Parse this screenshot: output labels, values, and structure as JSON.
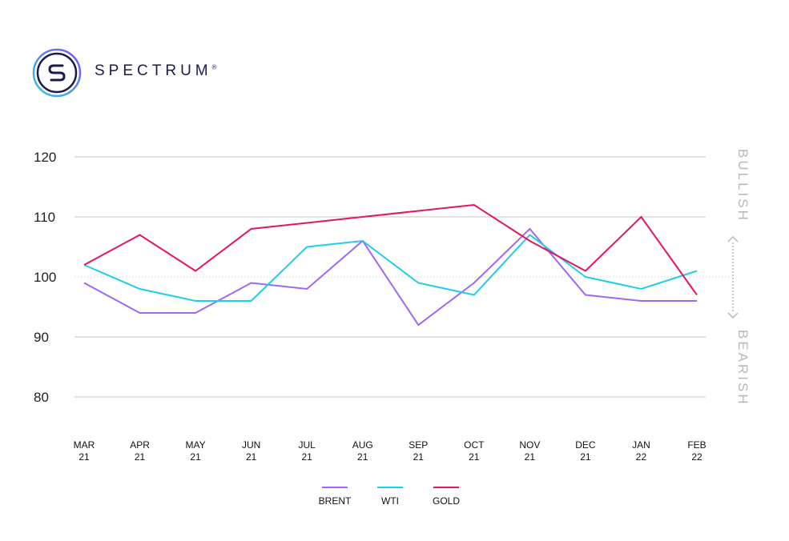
{
  "brand": {
    "name": "SPECTRUM",
    "reg_mark": "®",
    "logo_letter": "S",
    "colors": {
      "ring_start": "#2bc9f5",
      "ring_end": "#7b4ff0",
      "text": "#1a1a4e"
    }
  },
  "side_labels": {
    "top": "BULLISH",
    "bottom": "BEARISH"
  },
  "chart_data": {
    "type": "line",
    "x": [
      [
        "MAR",
        "21"
      ],
      [
        "APR",
        "21"
      ],
      [
        "MAY",
        "21"
      ],
      [
        "JUN",
        "21"
      ],
      [
        "JUL",
        "21"
      ],
      [
        "AUG",
        "21"
      ],
      [
        "SEP",
        "21"
      ],
      [
        "OCT",
        "21"
      ],
      [
        "NOV",
        "21"
      ],
      [
        "DEC",
        "21"
      ],
      [
        "JAN",
        "22"
      ],
      [
        "FEB",
        "22"
      ]
    ],
    "ylim": [
      80,
      120
    ],
    "yticks": [
      80,
      90,
      100,
      110,
      120
    ],
    "reference_line": 100,
    "grid": true,
    "legend_position": "bottom",
    "series": [
      {
        "name": "BRENT",
        "color": "#a066f5",
        "values": [
          99,
          94,
          94,
          99,
          98,
          106,
          92,
          99,
          108,
          97,
          96,
          96
        ]
      },
      {
        "name": "WTI",
        "color": "#1fcdec",
        "values": [
          102,
          98,
          96,
          96,
          105,
          106,
          99,
          97,
          107,
          100,
          98,
          101
        ]
      },
      {
        "name": "GOLD",
        "color": "#e8145e",
        "values": [
          102,
          107,
          101,
          108,
          109,
          110,
          111,
          112,
          106,
          101,
          110,
          97
        ]
      }
    ]
  }
}
